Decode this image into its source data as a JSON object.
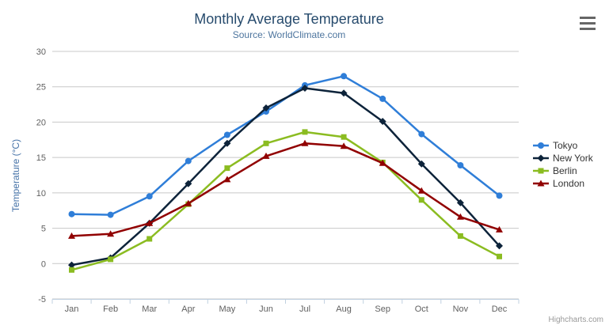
{
  "chart_data": {
    "type": "line",
    "title": "Monthly Average Temperature",
    "subtitle": "Source: WorldClimate.com",
    "categories": [
      "Jan",
      "Feb",
      "Mar",
      "Apr",
      "May",
      "Jun",
      "Jul",
      "Aug",
      "Sep",
      "Oct",
      "Nov",
      "Dec"
    ],
    "series": [
      {
        "name": "Tokyo",
        "color": "#2f7ed8",
        "marker": "circle",
        "values": [
          7.0,
          6.9,
          9.5,
          14.5,
          18.2,
          21.5,
          25.2,
          26.5,
          23.3,
          18.3,
          13.9,
          9.6
        ]
      },
      {
        "name": "New York",
        "color": "#0d233a",
        "marker": "diamond",
        "values": [
          -0.2,
          0.8,
          5.7,
          11.3,
          17.0,
          22.0,
          24.8,
          24.1,
          20.1,
          14.1,
          8.6,
          2.5
        ]
      },
      {
        "name": "Berlin",
        "color": "#8bbc21",
        "marker": "square",
        "values": [
          -0.9,
          0.6,
          3.5,
          8.4,
          13.5,
          17.0,
          18.6,
          17.9,
          14.3,
          9.0,
          3.9,
          1.0
        ]
      },
      {
        "name": "London",
        "color": "#910000",
        "marker": "triangle",
        "values": [
          3.9,
          4.2,
          5.7,
          8.5,
          11.9,
          15.2,
          17.0,
          16.6,
          14.2,
          10.3,
          6.6,
          4.8
        ]
      }
    ],
    "xlabel": "",
    "ylabel": "Temperature (°C)",
    "ylim": [
      -5,
      30
    ],
    "ytick_step": 5,
    "ytick_labels": [
      "-5",
      "0",
      "5",
      "10",
      "15",
      "20",
      "25",
      "30"
    ],
    "grid": true,
    "legend_position": "right"
  },
  "export_menu": {
    "icon": "hamburger-menu"
  },
  "credits": "Highcharts.com",
  "colors": {
    "title": "#274b6d",
    "subtitle": "#4d759e",
    "axis_labels": "#606060",
    "y_axis_title": "#4572a7",
    "gridline": "#c8c8c8",
    "axis_line": "#c0d0e0",
    "legend_text": "#333333",
    "credits_text": "#999999"
  }
}
